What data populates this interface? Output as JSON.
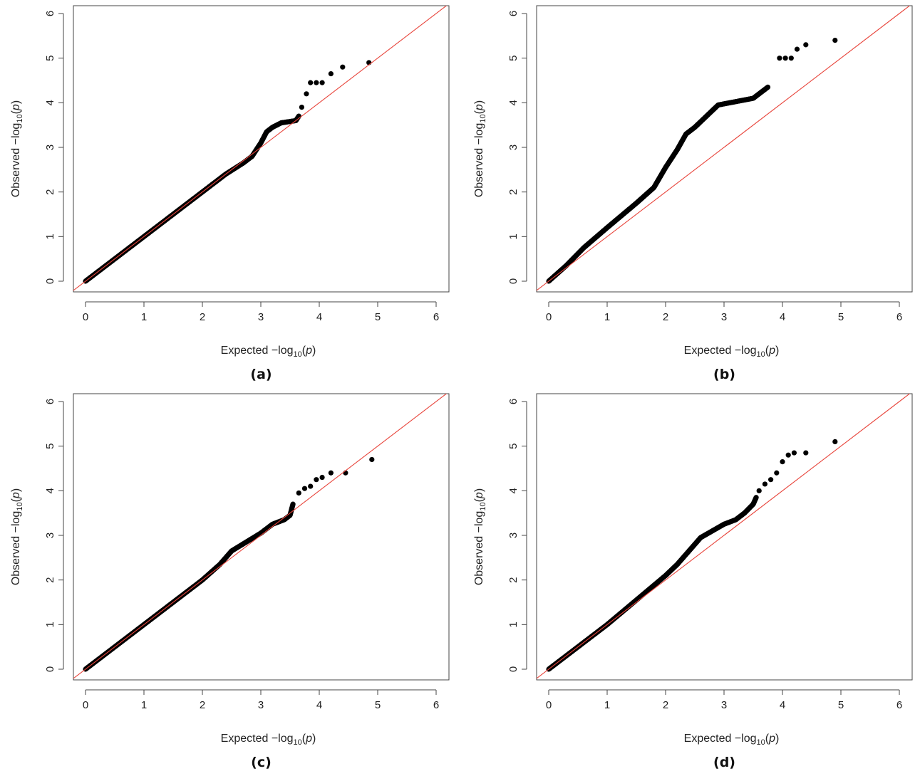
{
  "chart_data": [
    {
      "type": "scatter",
      "panel_label": "(a)",
      "xlabel_prefix": "Expected",
      "ylabel_prefix": "Observed",
      "log_label": "log",
      "log_base": "10",
      "p_label": "p",
      "xlim": [
        0,
        6
      ],
      "ylim": [
        0,
        6
      ],
      "xticks": [
        "0",
        "1",
        "2",
        "3",
        "4",
        "5",
        "6"
      ],
      "yticks": [
        "0",
        "1",
        "2",
        "3",
        "4",
        "5",
        "6"
      ],
      "reference_line": {
        "from": [
          0,
          0
        ],
        "to": [
          6.2,
          6.2
        ],
        "color": "#e8453c"
      },
      "curve": [
        [
          0,
          0
        ],
        [
          0.5,
          0.5
        ],
        [
          1.0,
          1.0
        ],
        [
          1.5,
          1.5
        ],
        [
          2.0,
          2.0
        ],
        [
          2.4,
          2.4
        ],
        [
          2.7,
          2.65
        ],
        [
          2.85,
          2.8
        ],
        [
          3.0,
          3.1
        ],
        [
          3.1,
          3.35
        ],
        [
          3.2,
          3.45
        ],
        [
          3.35,
          3.55
        ],
        [
          3.5,
          3.58
        ],
        [
          3.6,
          3.6
        ],
        [
          3.65,
          3.7
        ]
      ],
      "top_points": [
        [
          3.7,
          3.9
        ],
        [
          3.78,
          4.2
        ],
        [
          3.85,
          4.45
        ],
        [
          3.95,
          4.45
        ],
        [
          4.05,
          4.45
        ],
        [
          4.2,
          4.65
        ],
        [
          4.4,
          4.8
        ],
        [
          4.85,
          4.9
        ]
      ]
    },
    {
      "type": "scatter",
      "panel_label": "(b)",
      "xlabel_prefix": "Expected",
      "ylabel_prefix": "Observed",
      "log_label": "log",
      "log_base": "10",
      "p_label": "p",
      "xlim": [
        0,
        6
      ],
      "ylim": [
        0,
        6
      ],
      "xticks": [
        "0",
        "1",
        "2",
        "3",
        "4",
        "5",
        "6"
      ],
      "yticks": [
        "0",
        "1",
        "2",
        "3",
        "4",
        "5",
        "6"
      ],
      "reference_line": {
        "from": [
          0,
          0
        ],
        "to": [
          6.2,
          6.2
        ],
        "color": "#e8453c"
      },
      "curve": [
        [
          0,
          0
        ],
        [
          0.3,
          0.35
        ],
        [
          0.6,
          0.75
        ],
        [
          1.0,
          1.2
        ],
        [
          1.5,
          1.75
        ],
        [
          1.8,
          2.1
        ],
        [
          2.0,
          2.55
        ],
        [
          2.2,
          2.95
        ],
        [
          2.35,
          3.3
        ],
        [
          2.5,
          3.45
        ],
        [
          2.7,
          3.7
        ],
        [
          2.9,
          3.95
        ],
        [
          3.1,
          4.0
        ],
        [
          3.3,
          4.05
        ],
        [
          3.5,
          4.1
        ],
        [
          3.65,
          4.25
        ],
        [
          3.75,
          4.35
        ]
      ],
      "top_points": [
        [
          3.95,
          5.0
        ],
        [
          4.05,
          5.0
        ],
        [
          4.15,
          5.0
        ],
        [
          4.25,
          5.2
        ],
        [
          4.4,
          5.3
        ],
        [
          4.9,
          5.4
        ]
      ]
    },
    {
      "type": "scatter",
      "panel_label": "(c)",
      "xlabel_prefix": "Expected",
      "ylabel_prefix": "Observed",
      "log_label": "log",
      "log_base": "10",
      "p_label": "p",
      "xlim": [
        0,
        6
      ],
      "ylim": [
        0,
        6
      ],
      "xticks": [
        "0",
        "1",
        "2",
        "3",
        "4",
        "5",
        "6"
      ],
      "yticks": [
        "0",
        "1",
        "2",
        "3",
        "4",
        "5",
        "6"
      ],
      "reference_line": {
        "from": [
          0,
          0
        ],
        "to": [
          6.2,
          6.2
        ],
        "color": "#e8453c"
      },
      "curve": [
        [
          0,
          0
        ],
        [
          0.5,
          0.5
        ],
        [
          1.0,
          1.0
        ],
        [
          1.5,
          1.5
        ],
        [
          2.0,
          2.0
        ],
        [
          2.3,
          2.35
        ],
        [
          2.5,
          2.65
        ],
        [
          2.75,
          2.85
        ],
        [
          3.0,
          3.05
        ],
        [
          3.2,
          3.25
        ],
        [
          3.4,
          3.35
        ],
        [
          3.5,
          3.45
        ],
        [
          3.55,
          3.7
        ]
      ],
      "top_points": [
        [
          3.65,
          3.95
        ],
        [
          3.75,
          4.05
        ],
        [
          3.85,
          4.1
        ],
        [
          3.95,
          4.25
        ],
        [
          4.05,
          4.3
        ],
        [
          4.2,
          4.4
        ],
        [
          4.45,
          4.4
        ],
        [
          4.9,
          4.7
        ]
      ]
    },
    {
      "type": "scatter",
      "panel_label": "(d)",
      "xlabel_prefix": "Expected",
      "ylabel_prefix": "Observed",
      "log_label": "log",
      "log_base": "10",
      "p_label": "p",
      "xlim": [
        0,
        6
      ],
      "ylim": [
        0,
        6
      ],
      "xticks": [
        "0",
        "1",
        "2",
        "3",
        "4",
        "5",
        "6"
      ],
      "yticks": [
        "0",
        "1",
        "2",
        "3",
        "4",
        "5",
        "6"
      ],
      "reference_line": {
        "from": [
          0,
          0
        ],
        "to": [
          6.2,
          6.2
        ],
        "color": "#e8453c"
      },
      "curve": [
        [
          0,
          0
        ],
        [
          0.5,
          0.5
        ],
        [
          1.0,
          1.0
        ],
        [
          1.5,
          1.55
        ],
        [
          2.0,
          2.1
        ],
        [
          2.2,
          2.35
        ],
        [
          2.4,
          2.65
        ],
        [
          2.6,
          2.95
        ],
        [
          2.8,
          3.1
        ],
        [
          3.0,
          3.25
        ],
        [
          3.2,
          3.35
        ],
        [
          3.35,
          3.5
        ],
        [
          3.5,
          3.7
        ],
        [
          3.55,
          3.85
        ]
      ],
      "top_points": [
        [
          3.6,
          4.0
        ],
        [
          3.7,
          4.15
        ],
        [
          3.8,
          4.25
        ],
        [
          3.9,
          4.4
        ],
        [
          4.0,
          4.65
        ],
        [
          4.1,
          4.8
        ],
        [
          4.2,
          4.85
        ],
        [
          4.4,
          4.85
        ],
        [
          4.9,
          5.1
        ]
      ]
    }
  ]
}
